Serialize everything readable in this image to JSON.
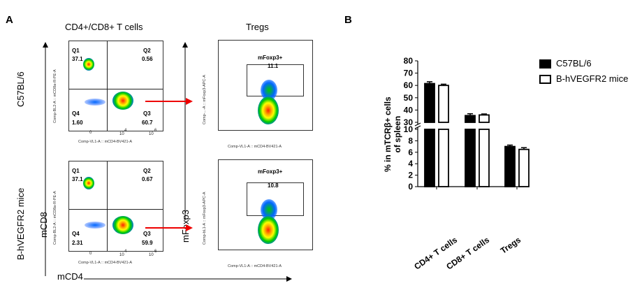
{
  "panel_a": {
    "letter": "A",
    "title_cd4cd8": "CD4+/CD8+ T cells",
    "title_tregs": "Tregs",
    "row1_label": "C57BL/6",
    "row2_label": "B-hVEGFR2 mice",
    "axis_mcd8": "mCD8",
    "axis_mcd4": "mCD4",
    "axis_mfoxp3": "mFoxp3",
    "dot_x_axis": "Comp-VL1-A :: mCD4-BV421-A",
    "dot_y_axis": "Comp-BL2-A :: mCD8a-R-PE-A",
    "treg_y_axis_1": "Comp-...-A :: mFoxp3-APC-A",
    "treg_y_axis_2": "Comp-bL1-A :: mFoxp3-APC-A",
    "treg_x_axis": "Comp-VL1-A :: mCD4-BV421-A",
    "gate_label": "mFoxp3+",
    "plots": [
      {
        "q1": "Q1",
        "q1v": "37.1",
        "q2": "Q2",
        "q2v": "0.56",
        "q3": "Q3",
        "q3v": "60.7",
        "q4": "Q4",
        "q4v": "1.60",
        "treg": "11.1"
      },
      {
        "q1": "Q1",
        "q1v": "37.1",
        "q2": "Q2",
        "q2v": "0.67",
        "q3": "Q3",
        "q3v": "59.9",
        "q4": "Q4",
        "q4v": "2.31",
        "treg": "10.8"
      }
    ],
    "ticks": {
      "t0": "0",
      "t4": "10",
      "t4e": "4",
      "t6": "10",
      "t6e": "6"
    }
  },
  "chart_data": {
    "type": "bar",
    "letter": "B",
    "categories": [
      "CD4+ T cells",
      "CD8+ T cells",
      "Tregs"
    ],
    "series": [
      {
        "name": "C57BL/6",
        "values": [
          61.5,
          35.5,
          7.0
        ],
        "errors": [
          1.5,
          1.5,
          0.25
        ],
        "color": "#000000"
      },
      {
        "name": "B-hVEGFR2 mice",
        "values": [
          60.0,
          36.0,
          6.5
        ],
        "errors": [
          1.0,
          0.8,
          0.3
        ],
        "color": "#ffffff"
      }
    ],
    "ylabel": "% in mTCRβ+ cells\nof spleen",
    "ylabel_line1": "% in mTCRβ+ cells",
    "ylabel_line2": "of spleen",
    "y_broken_axis": {
      "lower_range": [
        0,
        10
      ],
      "upper_range": [
        30,
        80
      ]
    },
    "yticks_lower": [
      "0",
      "2",
      "4",
      "6",
      "8",
      "10"
    ],
    "yticks_upper": [
      "30",
      "40",
      "50",
      "60",
      "70",
      "80"
    ],
    "legend_position": "top-right"
  }
}
